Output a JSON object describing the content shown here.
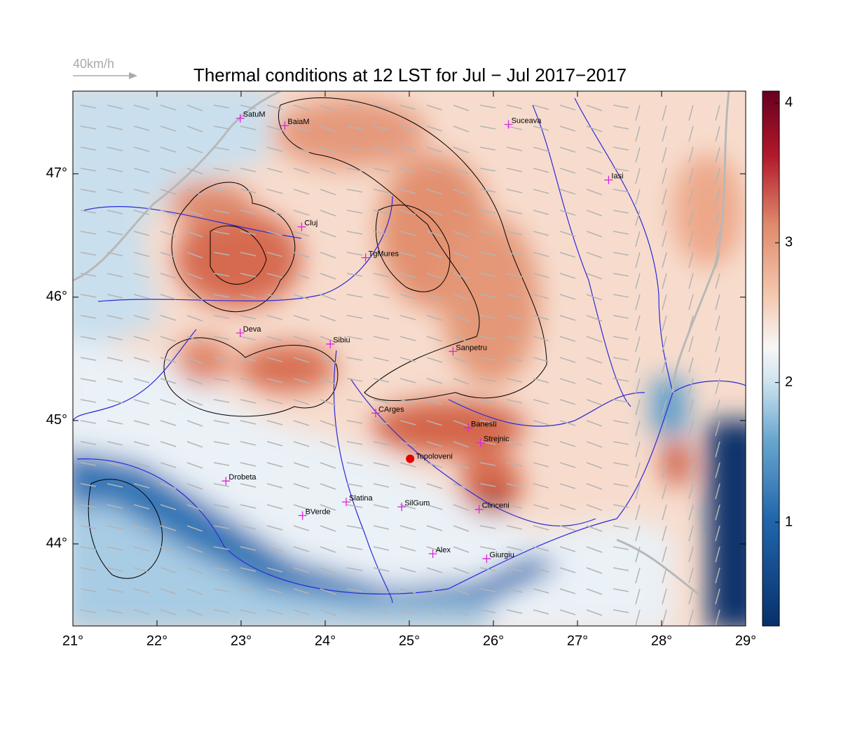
{
  "map": {
    "title": "Thermal conditions at 12 LST for Jul − Jul  2017−2017",
    "reference_arrow": "40km/h",
    "xlim": [
      21,
      29
    ],
    "ylim": [
      43.335,
      47.67
    ],
    "xticks": [
      {
        "value": 21,
        "label": "21°"
      },
      {
        "value": 22,
        "label": "22°"
      },
      {
        "value": 23,
        "label": "23°"
      },
      {
        "value": 24,
        "label": "24°"
      },
      {
        "value": 25,
        "label": "25°"
      },
      {
        "value": 26,
        "label": "26°"
      },
      {
        "value": 27,
        "label": "27°"
      },
      {
        "value": 28,
        "label": "28°"
      },
      {
        "value": 29,
        "label": "29°"
      }
    ],
    "yticks": [
      {
        "value": 44,
        "label": "44°"
      },
      {
        "value": 45,
        "label": "45°"
      },
      {
        "value": 46,
        "label": "46°"
      },
      {
        "value": 47,
        "label": "47°"
      }
    ],
    "colorbar": {
      "lim": [
        0.258,
        4.085
      ],
      "ticks": [
        1,
        2,
        3,
        4
      ]
    },
    "cities": [
      {
        "name": "SatuM",
        "lon": 22.99,
        "lat": 47.45
      },
      {
        "name": "BaiaM",
        "lon": 23.52,
        "lat": 47.39
      },
      {
        "name": "Suceava",
        "lon": 26.18,
        "lat": 47.4
      },
      {
        "name": "Iasi",
        "lon": 27.37,
        "lat": 46.95
      },
      {
        "name": "Cluj",
        "lon": 23.72,
        "lat": 46.57
      },
      {
        "name": "TgMures",
        "lon": 24.48,
        "lat": 46.32
      },
      {
        "name": "Deva",
        "lon": 22.99,
        "lat": 45.71
      },
      {
        "name": "Sibiu",
        "lon": 24.06,
        "lat": 45.62
      },
      {
        "name": "Sanpetru",
        "lon": 25.52,
        "lat": 45.56
      },
      {
        "name": "CArges",
        "lon": 24.6,
        "lat": 45.06
      },
      {
        "name": "Banesti",
        "lon": 25.7,
        "lat": 44.94
      },
      {
        "name": "Strejnic",
        "lon": 25.85,
        "lat": 44.82
      },
      {
        "name": "Drobeta",
        "lon": 22.82,
        "lat": 44.51
      },
      {
        "name": "Slatina",
        "lon": 24.25,
        "lat": 44.34
      },
      {
        "name": "SilGum",
        "lon": 24.91,
        "lat": 44.3
      },
      {
        "name": "BVerde",
        "lon": 23.73,
        "lat": 44.23
      },
      {
        "name": "Clinceni",
        "lon": 25.83,
        "lat": 44.28
      },
      {
        "name": "Alex",
        "lon": 25.28,
        "lat": 43.92
      },
      {
        "name": "Giurgiu",
        "lon": 25.92,
        "lat": 43.88
      }
    ],
    "highlight": {
      "name": "Topoloveni",
      "lon": 25.01,
      "lat": 44.69,
      "color": "#e00000"
    }
  }
}
